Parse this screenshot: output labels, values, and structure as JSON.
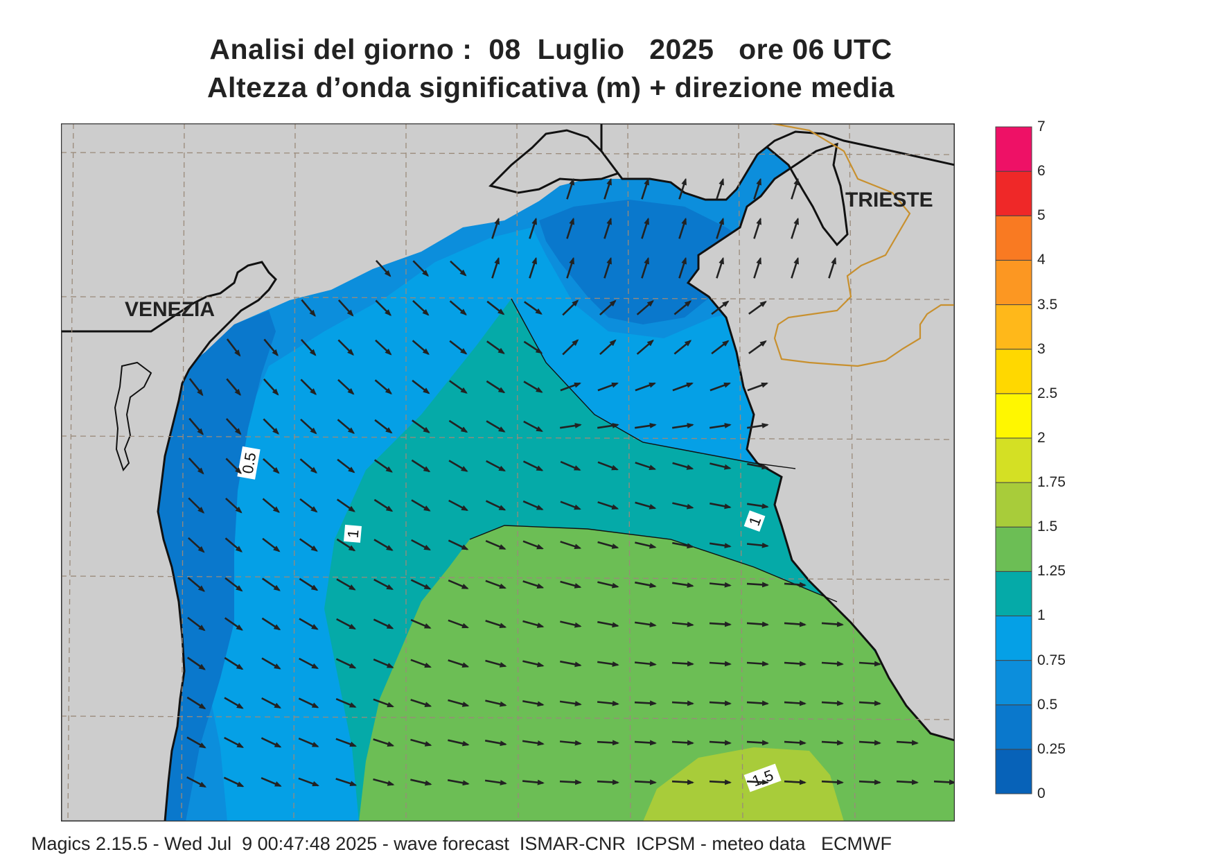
{
  "title": {
    "line1": "Analisi del giorno :  08  Luglio   2025   ore 06 UTC",
    "line2": "Altezza d’onda significativa (m) + direzione media"
  },
  "cities": {
    "venezia": "VENEZIA",
    "trieste": "TRIESTE"
  },
  "contour_labels": [
    "0.5",
    "1",
    "1",
    "1.5"
  ],
  "legend": {
    "levels": [
      "0",
      "0.25",
      "0.5",
      "0.75",
      "1",
      "1.25",
      "1.5",
      "1.75",
      "2",
      "2.5",
      "3",
      "3.5",
      "4",
      "5",
      "6",
      "7"
    ],
    "colors": [
      "#0762b8",
      "#0a78cc",
      "#0c8edc",
      "#05a0e6",
      "#05aaa8",
      "#6cbe55",
      "#a8cc3a",
      "#d4e024",
      "#fff700",
      "#ffd800",
      "#ffb81a",
      "#fc9722",
      "#f97a22",
      "#ef2828",
      "#ee1166"
    ]
  },
  "colors": {
    "land": "#cdcdcd",
    "coast": "#111111",
    "border": "#c8902e",
    "grid": "#9a8a7a"
  },
  "footer": "Magics 2.15.5 - Wed Jul  9 00:47:48 2025 - wave forecast  ISMAR-CNR  ICPSM - meteo data   ECMWF"
}
